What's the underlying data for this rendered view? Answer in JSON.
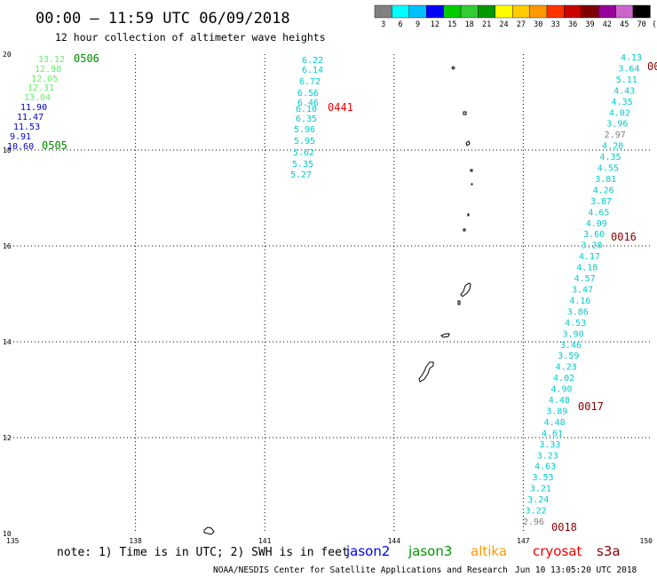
{
  "title": "00:00 – 11:59 UTC 06/09/2018",
  "subtitle": "12 hour collection of altimeter wave heights",
  "legend": {
    "unit": "(ft)",
    "bins": [
      {
        "label": "3",
        "color": "#808080"
      },
      {
        "label": "6",
        "color": "#00ffff"
      },
      {
        "label": "9",
        "color": "#00bfff"
      },
      {
        "label": "12",
        "color": "#0000ff"
      },
      {
        "label": "15",
        "color": "#00cc00"
      },
      {
        "label": "18",
        "color": "#33cc33"
      },
      {
        "label": "21",
        "color": "#009900"
      },
      {
        "label": "24",
        "color": "#ffff00"
      },
      {
        "label": "27",
        "color": "#ffcc00"
      },
      {
        "label": "30",
        "color": "#ff9900"
      },
      {
        "label": "33",
        "color": "#ff3300"
      },
      {
        "label": "36",
        "color": "#cc0000"
      },
      {
        "label": "39",
        "color": "#800000"
      },
      {
        "label": "42",
        "color": "#990099"
      },
      {
        "label": "45",
        "color": "#cc66cc"
      },
      {
        "label": "70",
        "color": "#000000"
      }
    ]
  },
  "map": {
    "lon_range": [
      135,
      150
    ],
    "lat_range": [
      10,
      20
    ],
    "lon_ticks": [
      "135",
      "138",
      "141",
      "144",
      "147",
      "150"
    ],
    "lat_ticks": [
      "20",
      "18",
      "16",
      "14",
      "12",
      "10"
    ]
  },
  "tracks": [
    {
      "name": "track-a",
      "points": [
        {
          "v": "13.12",
          "color": "#66ee66"
        },
        {
          "v": "12.98",
          "color": "#66ee66"
        },
        {
          "v": "12.05",
          "color": "#66ee66"
        },
        {
          "v": "12.31",
          "color": "#66ee66"
        },
        {
          "v": "13.04",
          "color": "#66ee66"
        },
        {
          "v": "11.90",
          "color": "#0000cc"
        },
        {
          "v": "11.47",
          "color": "#0000cc"
        },
        {
          "v": "11.53",
          "color": "#0000cc"
        },
        {
          "v": "9.91",
          "color": "#0000cc"
        },
        {
          "v": "10.60",
          "color": "#0000cc"
        }
      ],
      "time_labels": [
        {
          "text": "0506",
          "color": "#008800"
        },
        {
          "text": "0505",
          "color": "#008800"
        }
      ]
    },
    {
      "name": "track-b",
      "points": [
        {
          "v": "6.22"
        },
        {
          "v": "6.14"
        },
        {
          "v": "6.72"
        },
        {
          "v": "6.56"
        },
        {
          "v": "6.46"
        },
        {
          "v": "6.10"
        },
        {
          "v": "6.35"
        },
        {
          "v": "5.96"
        },
        {
          "v": "5.95"
        },
        {
          "v": "5.62"
        },
        {
          "v": "5.35"
        },
        {
          "v": "5.27"
        }
      ],
      "color": "#00cccc",
      "time_labels": [
        {
          "text": "0441",
          "color": "#ee0000"
        }
      ]
    },
    {
      "name": "track-c",
      "points": [
        {
          "v": "4.13"
        },
        {
          "v": "3.64"
        },
        {
          "v": "5.11"
        },
        {
          "v": "4.43"
        },
        {
          "v": "4.35"
        },
        {
          "v": "4.02"
        },
        {
          "v": "3.96"
        },
        {
          "v": "2.97",
          "color": "#808080"
        },
        {
          "v": "4.28"
        },
        {
          "v": "4.35"
        },
        {
          "v": "4.55"
        },
        {
          "v": "3.81"
        },
        {
          "v": "4.26"
        },
        {
          "v": "3.87"
        },
        {
          "v": "4.65"
        },
        {
          "v": "4.09"
        },
        {
          "v": "3.60"
        },
        {
          "v": "3.28"
        },
        {
          "v": "4.17"
        },
        {
          "v": "4.18"
        },
        {
          "v": "4.57"
        },
        {
          "v": "3.47"
        },
        {
          "v": "4.16"
        },
        {
          "v": "3.86"
        },
        {
          "v": "4.53"
        },
        {
          "v": "3.90"
        },
        {
          "v": "3.46"
        },
        {
          "v": "3.59"
        },
        {
          "v": "4.23"
        },
        {
          "v": "4.02"
        },
        {
          "v": "4.90"
        },
        {
          "v": "4.48"
        },
        {
          "v": "3.89"
        },
        {
          "v": "4.48"
        },
        {
          "v": "4.61"
        },
        {
          "v": "3.33"
        },
        {
          "v": "3.23"
        },
        {
          "v": "4.63"
        },
        {
          "v": "3.53"
        },
        {
          "v": "3.21"
        },
        {
          "v": "3.24"
        },
        {
          "v": "3.22"
        },
        {
          "v": "2.96",
          "color": "#808080"
        }
      ],
      "color": "#00cccc",
      "time_labels": [
        {
          "text": "00",
          "color": "#880000"
        },
        {
          "text": "0016",
          "color": "#880000"
        },
        {
          "text": "0017",
          "color": "#880000"
        },
        {
          "text": "0018",
          "color": "#880000"
        }
      ]
    }
  ],
  "footer": {
    "note": "note: 1) Time is in UTC; 2) SWH is in feet",
    "satellites": [
      {
        "name": "jason2",
        "color": "#0000ee"
      },
      {
        "name": "jason3",
        "color": "#009900"
      },
      {
        "name": "altika",
        "color": "#ff9900"
      },
      {
        "name": "cryosat",
        "color": "#ee0000"
      },
      {
        "name": "s3a",
        "color": "#880000"
      }
    ],
    "credit": "NOAA/NESDIS Center for Satellite Applications and Research",
    "timestamp": "Jun 10 13:05:20 UTC 2018"
  }
}
